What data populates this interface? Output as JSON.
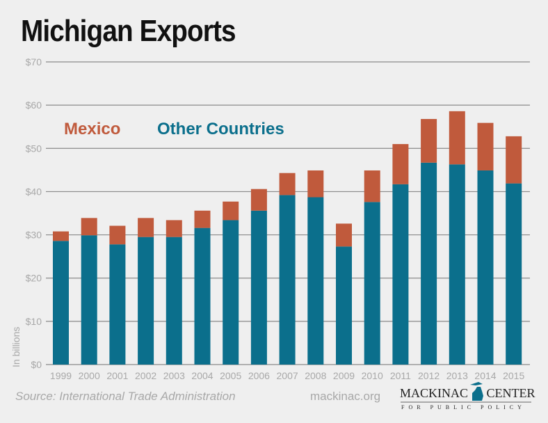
{
  "chart_data": {
    "type": "bar",
    "stacked": true,
    "title": "Michigan Exports",
    "ylabel": "In billions",
    "xlabel": "",
    "ylim": [
      0,
      70
    ],
    "yticks": [
      "$0",
      "$10",
      "$20",
      "$30",
      "$40",
      "$50",
      "$60",
      "$70"
    ],
    "grid": true,
    "legend_placement": "top-left",
    "categories": [
      "1999",
      "2000",
      "2001",
      "2002",
      "2003",
      "2004",
      "2005",
      "2006",
      "2007",
      "2008",
      "2009",
      "2010",
      "2011",
      "2012",
      "2013",
      "2014",
      "2015"
    ],
    "series": [
      {
        "name": "Other Countries",
        "color": "#0b6f8c",
        "values": [
          28.6,
          29.9,
          27.8,
          29.5,
          29.5,
          31.6,
          33.4,
          35.6,
          39.2,
          38.7,
          27.3,
          37.6,
          41.7,
          46.7,
          46.3,
          44.9,
          41.9
        ]
      },
      {
        "name": "Mexico",
        "color": "#c05a3c",
        "values": [
          2.2,
          4.0,
          4.3,
          4.4,
          3.9,
          4.0,
          4.3,
          5.0,
          5.1,
          6.2,
          5.3,
          7.3,
          9.3,
          10.1,
          12.3,
          11.0,
          10.9
        ]
      }
    ]
  },
  "footer": {
    "source": "Source: International Trade Administration",
    "site": "mackinac.org",
    "logo_main": "MACKINAC CENTER",
    "logo_sub": "FOR PUBLIC POLICY"
  }
}
